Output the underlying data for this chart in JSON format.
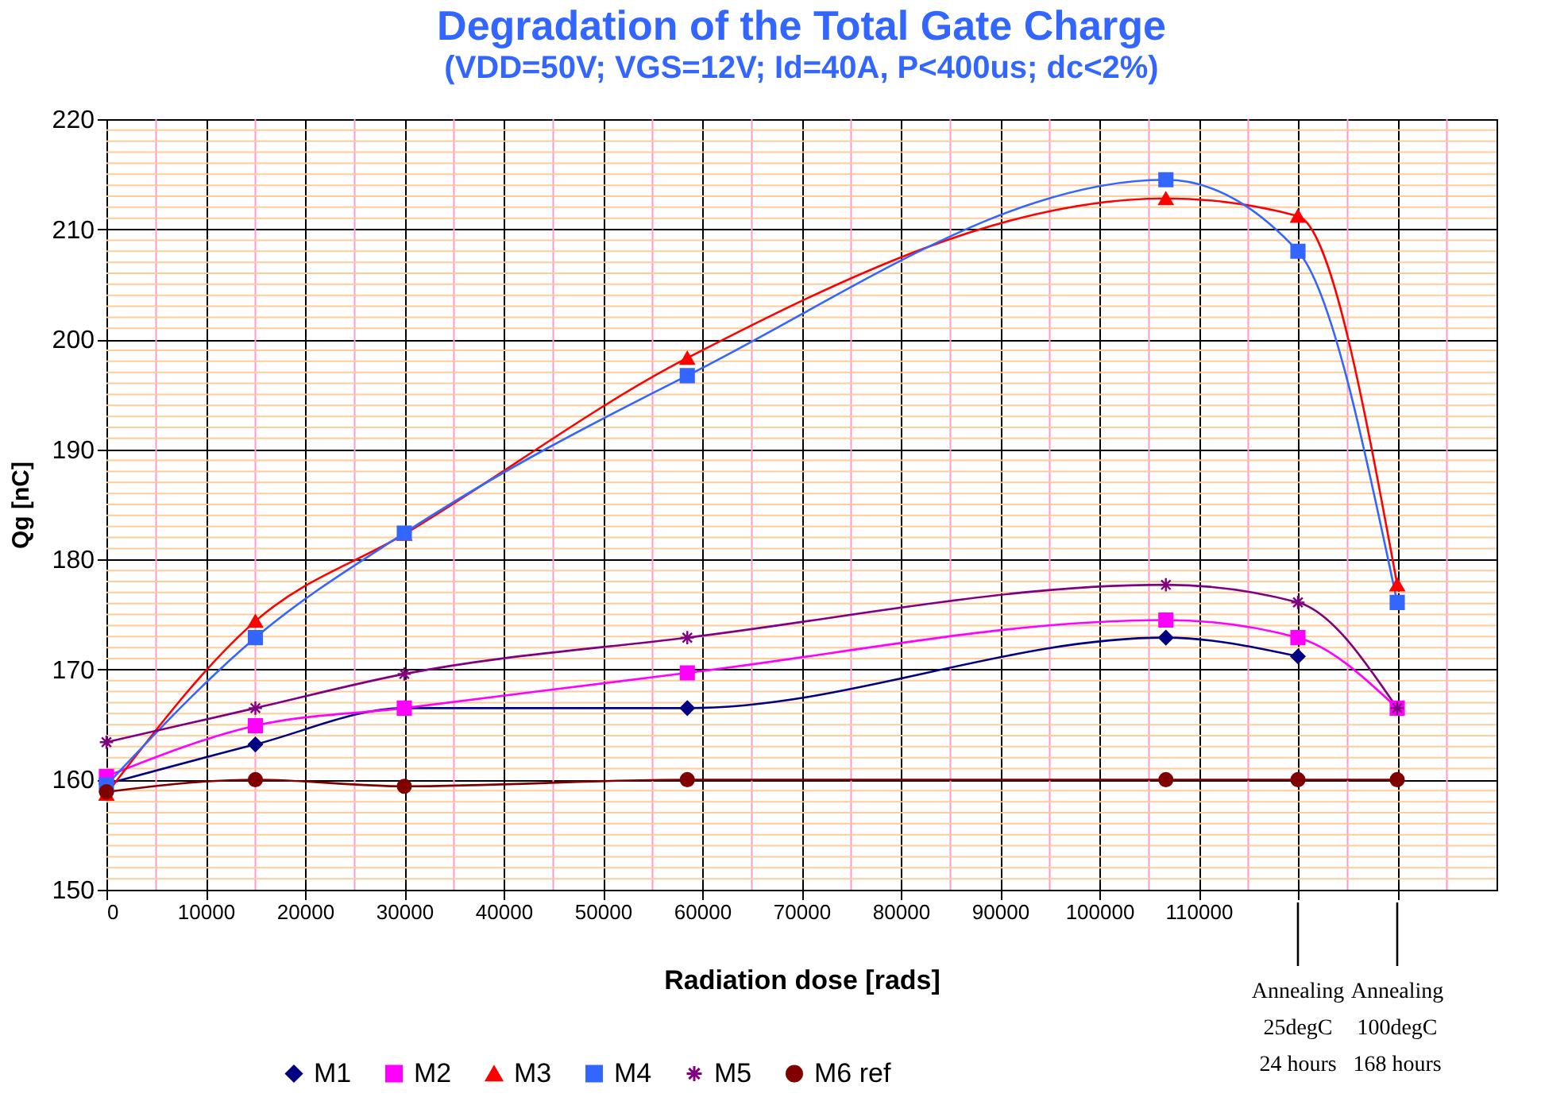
{
  "chart_data": {
    "type": "line",
    "title": "Degradation of the Total Gate Charge",
    "subtitle": "(VDD=50V; VGS=12V; Id=40A, P<400us; dc<2%)",
    "xlabel": "Radiation dose [rads]",
    "ylabel": "Qg [nC]",
    "x": [
      0,
      15000,
      30000,
      58500,
      106700,
      120000,
      130000
    ],
    "series": [
      {
        "name": "M1",
        "color": "#000080",
        "marker": "diamond",
        "values": [
          159.6,
          163.2,
          166.5,
          166.5,
          172.9,
          171.2,
          null
        ]
      },
      {
        "name": "M2",
        "color": "#ff00ff",
        "marker": "square",
        "values": [
          160.3,
          164.9,
          166.5,
          169.7,
          174.5,
          172.9,
          166.5
        ]
      },
      {
        "name": "M3",
        "color": "#ff0000",
        "marker": "triangle",
        "values": [
          158.7,
          174.4,
          182.3,
          198.3,
          212.8,
          211.2,
          177.7
        ]
      },
      {
        "name": "M4",
        "color": "#3366ff",
        "marker": "square",
        "values": [
          159.5,
          172.9,
          182.4,
          196.7,
          214.5,
          208.0,
          176.1
        ]
      },
      {
        "name": "M5",
        "color": "#800080",
        "marker": "cross",
        "values": [
          163.4,
          166.5,
          169.6,
          172.9,
          177.7,
          176.1,
          166.5
        ]
      },
      {
        "name": "M6 ref",
        "color": "#800000",
        "marker": "circle",
        "values": [
          158.9,
          160.0,
          159.4,
          160.0,
          160.0,
          160.0,
          160.0
        ]
      }
    ],
    "xlim": [
      0,
      140000
    ],
    "xticks": [
      0,
      10000,
      20000,
      30000,
      40000,
      50000,
      60000,
      70000,
      80000,
      90000,
      100000,
      110000,
      {
        "value": 120000,
        "label": null
      },
      {
        "value": 130000,
        "label": null
      }
    ],
    "ylim": [
      150,
      220
    ],
    "yticks": [
      150,
      160,
      170,
      180,
      190,
      200,
      210,
      220
    ],
    "grid": true,
    "legend": "bottom",
    "ref_lines": [
      {
        "axis": "x",
        "value": 5000,
        "color": "#ff99cc"
      },
      {
        "axis": "x",
        "value": 15000,
        "color": "#ff99cc"
      },
      {
        "axis": "x",
        "value": 25000,
        "color": "#ff99cc"
      },
      {
        "axis": "x",
        "value": 35000,
        "color": "#ff99cc"
      },
      {
        "axis": "x",
        "value": 45000,
        "color": "#ff99cc"
      },
      {
        "axis": "x",
        "value": 55000,
        "color": "#ff99cc"
      },
      {
        "axis": "x",
        "value": 65000,
        "color": "#ff99cc"
      },
      {
        "axis": "x",
        "value": 75000,
        "color": "#ff99cc"
      },
      {
        "axis": "x",
        "value": 85000,
        "color": "#ff99cc"
      },
      {
        "axis": "x",
        "value": 95000,
        "color": "#ff99cc"
      },
      {
        "axis": "x",
        "value": 105000,
        "color": "#ff99cc"
      },
      {
        "axis": "x",
        "value": 115000,
        "color": "#ff99cc"
      },
      {
        "axis": "x",
        "value": 125000,
        "color": "#ff99cc"
      },
      {
        "axis": "x",
        "value": 135000,
        "color": "#ff99cc"
      },
      {
        "axis": "y",
        "value": 151,
        "color": "#ffcc99"
      },
      {
        "axis": "y",
        "value": 152,
        "color": "#ffcc99"
      },
      {
        "axis": "y",
        "value": 153,
        "color": "#ffcc99"
      },
      {
        "axis": "y",
        "value": 154,
        "color": "#ffcc99"
      },
      {
        "axis": "y",
        "value": 155,
        "color": "#ffcc99"
      },
      {
        "axis": "y",
        "value": 156,
        "color": "#ffcc99"
      },
      {
        "axis": "y",
        "value": 157,
        "color": "#ffcc99"
      },
      {
        "axis": "y",
        "value": 158,
        "color": "#ffcc99"
      },
      {
        "axis": "y",
        "value": 159,
        "color": "#ffcc99"
      },
      {
        "axis": "y",
        "value": 161,
        "color": "#ffcc99"
      },
      {
        "axis": "y",
        "value": 162,
        "color": "#ffcc99"
      },
      {
        "axis": "y",
        "value": 163,
        "color": "#ffcc99"
      },
      {
        "axis": "y",
        "value": 164,
        "color": "#ffcc99"
      },
      {
        "axis": "y",
        "value": 165,
        "color": "#ffcc99"
      },
      {
        "axis": "y",
        "value": 166,
        "color": "#ffcc99"
      },
      {
        "axis": "y",
        "value": 167,
        "color": "#ffcc99"
      },
      {
        "axis": "y",
        "value": 168,
        "color": "#ffcc99"
      },
      {
        "axis": "y",
        "value": 169,
        "color": "#ffcc99"
      },
      {
        "axis": "y",
        "value": 171,
        "color": "#ffcc99"
      },
      {
        "axis": "y",
        "value": 172,
        "color": "#ffcc99"
      },
      {
        "axis": "y",
        "value": 173,
        "color": "#ffcc99"
      },
      {
        "axis": "y",
        "value": 174,
        "color": "#ffcc99"
      },
      {
        "axis": "y",
        "value": 175,
        "color": "#ffcc99"
      },
      {
        "axis": "y",
        "value": 176,
        "color": "#ffcc99"
      },
      {
        "axis": "y",
        "value": 177,
        "color": "#ffcc99"
      },
      {
        "axis": "y",
        "value": 178,
        "color": "#ffcc99"
      },
      {
        "axis": "y",
        "value": 179,
        "color": "#ffcc99"
      },
      {
        "axis": "y",
        "value": 181,
        "color": "#ffcc99"
      },
      {
        "axis": "y",
        "value": 182,
        "color": "#ffcc99"
      },
      {
        "axis": "y",
        "value": 183,
        "color": "#ffcc99"
      },
      {
        "axis": "y",
        "value": 184,
        "color": "#ffcc99"
      },
      {
        "axis": "y",
        "value": 185,
        "color": "#ffcc99"
      },
      {
        "axis": "y",
        "value": 186,
        "color": "#ffcc99"
      },
      {
        "axis": "y",
        "value": 187,
        "color": "#ffcc99"
      },
      {
        "axis": "y",
        "value": 188,
        "color": "#ffcc99"
      },
      {
        "axis": "y",
        "value": 189,
        "color": "#ffcc99"
      },
      {
        "axis": "y",
        "value": 191,
        "color": "#ffcc99"
      },
      {
        "axis": "y",
        "value": 192,
        "color": "#ffcc99"
      },
      {
        "axis": "y",
        "value": 193,
        "color": "#ffcc99"
      },
      {
        "axis": "y",
        "value": 194,
        "color": "#ffcc99"
      },
      {
        "axis": "y",
        "value": 195,
        "color": "#ffcc99"
      },
      {
        "axis": "y",
        "value": 196,
        "color": "#ffcc99"
      },
      {
        "axis": "y",
        "value": 197,
        "color": "#ffcc99"
      },
      {
        "axis": "y",
        "value": 198,
        "color": "#ffcc99"
      },
      {
        "axis": "y",
        "value": 199,
        "color": "#ffcc99"
      },
      {
        "axis": "y",
        "value": 201,
        "color": "#ffcc99"
      },
      {
        "axis": "y",
        "value": 202,
        "color": "#ffcc99"
      },
      {
        "axis": "y",
        "value": 203,
        "color": "#ffcc99"
      },
      {
        "axis": "y",
        "value": 204,
        "color": "#ffcc99"
      },
      {
        "axis": "y",
        "value": 205,
        "color": "#ffcc99"
      },
      {
        "axis": "y",
        "value": 206,
        "color": "#ffcc99"
      },
      {
        "axis": "y",
        "value": 207,
        "color": "#ffcc99"
      },
      {
        "axis": "y",
        "value": 208,
        "color": "#ffcc99"
      },
      {
        "axis": "y",
        "value": 209,
        "color": "#ffcc99"
      },
      {
        "axis": "y",
        "value": 211,
        "color": "#ffcc99"
      },
      {
        "axis": "y",
        "value": 212,
        "color": "#ffcc99"
      },
      {
        "axis": "y",
        "value": 213,
        "color": "#ffcc99"
      },
      {
        "axis": "y",
        "value": 214,
        "color": "#ffcc99"
      },
      {
        "axis": "y",
        "value": 215,
        "color": "#ffcc99"
      },
      {
        "axis": "y",
        "value": 216,
        "color": "#ffcc99"
      },
      {
        "axis": "y",
        "value": 217,
        "color": "#ffcc99"
      },
      {
        "axis": "y",
        "value": 218,
        "color": "#ffcc99"
      },
      {
        "axis": "y",
        "value": 219,
        "color": "#ffcc99"
      }
    ],
    "annotations": [
      {
        "text": "Annealing\n25degC\n24 hours",
        "x": 120000
      },
      {
        "text": "Annealing\n100degC\n168 hours",
        "x": 130000
      }
    ]
  }
}
